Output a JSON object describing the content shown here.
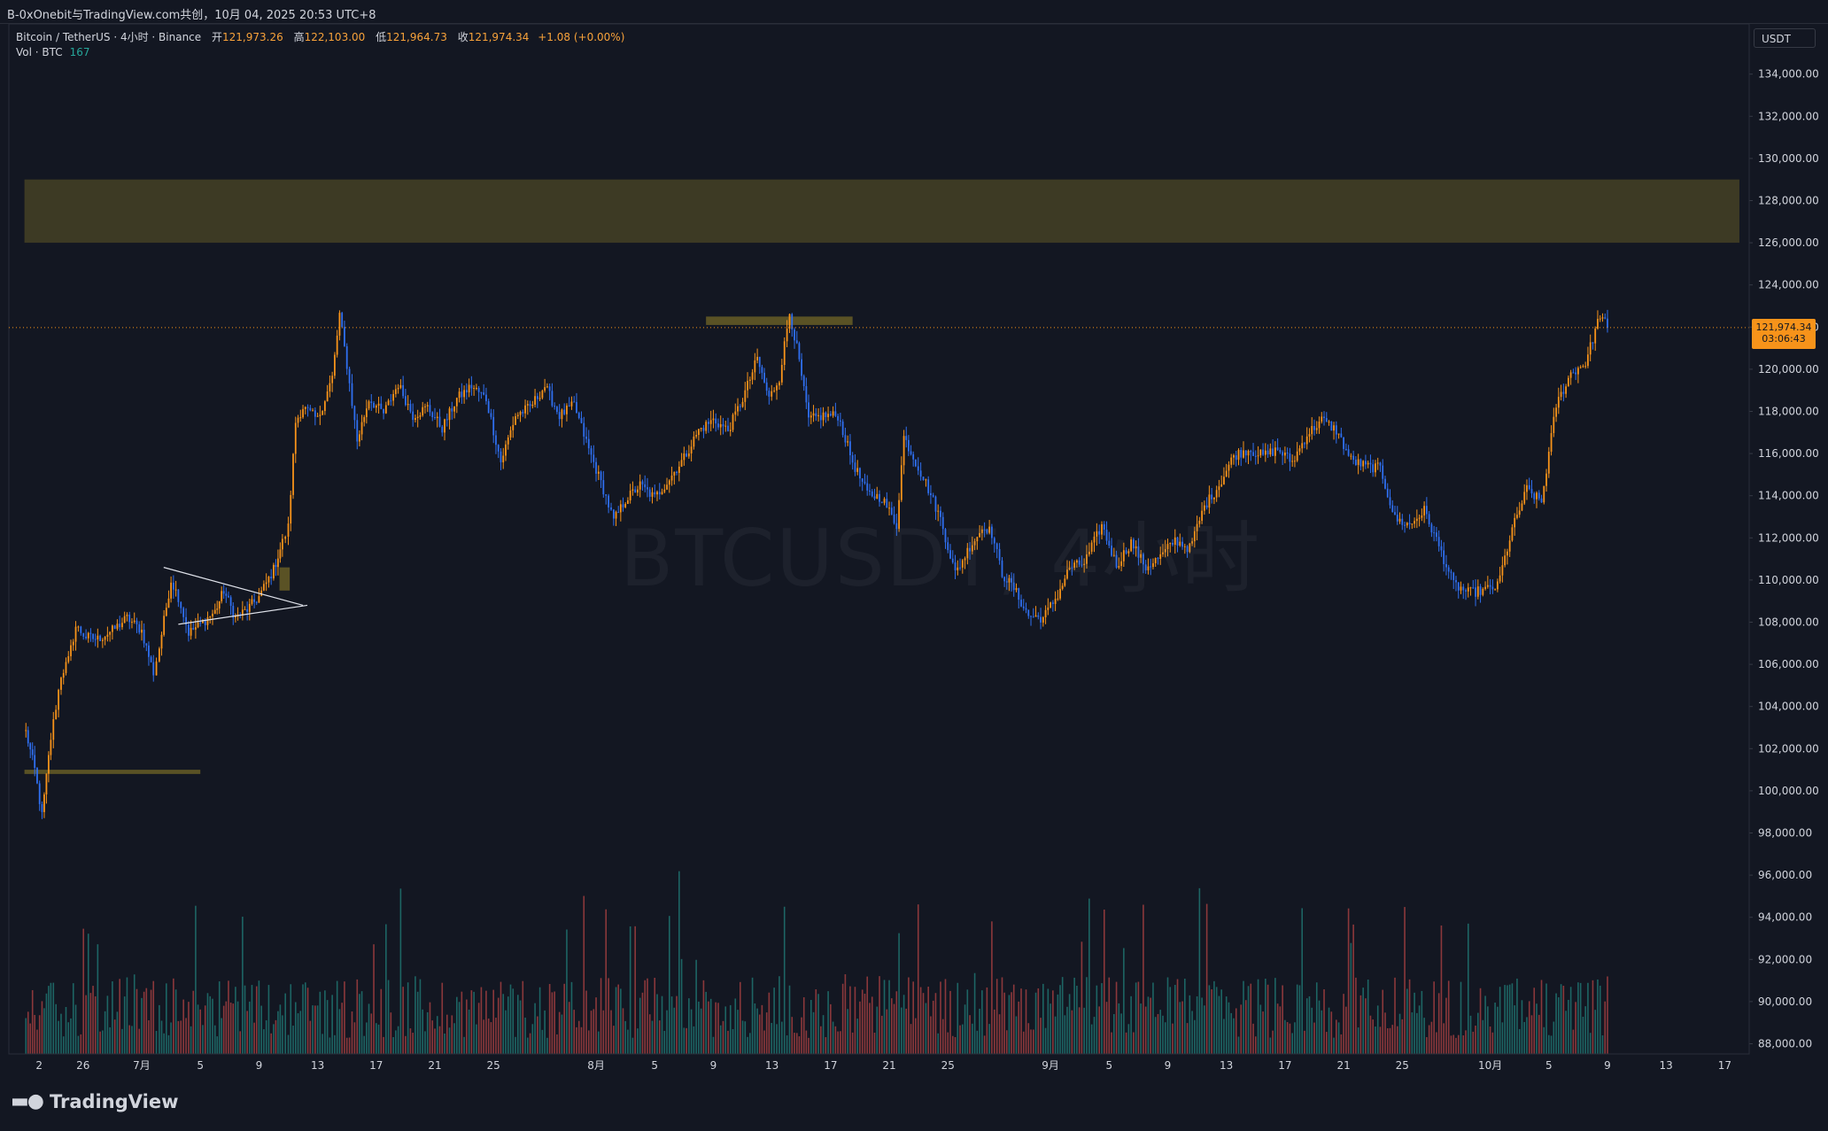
{
  "header": {
    "share_text": "B-0xOnebit与TradingView.com共创，10月 04, 2025 20:53 UTC+8"
  },
  "legend": {
    "symbol": "Bitcoin / TetherUS · 4小时 · Binance",
    "open_label": "开",
    "open": "121,973.26",
    "high_label": "高",
    "high": "122,103.00",
    "low_label": "低",
    "low": "121,964.73",
    "close_label": "收",
    "close": "121,974.34",
    "change": "+1.08 (+0.00%)",
    "volume_label": "Vol · BTC",
    "volume_value": "167"
  },
  "watermark": "BTCUSDT, 4小时",
  "price_axis": {
    "currency": "USDT",
    "current_price": "121,974.34",
    "countdown": "03:06:43"
  },
  "footer": {
    "brand": "TradingView"
  },
  "colors": {
    "background": "#131722",
    "up": "#f7931a",
    "down": "#2f6ff0",
    "vol_up": "#26a69a",
    "vol_down": "#ef5350",
    "zone": "#8b7a28"
  },
  "chart_data": {
    "type": "candlestick",
    "title": "",
    "ylim": [
      87500,
      136000
    ],
    "y_ticks": [
      "88,000.00",
      "90,000.00",
      "92,000.00",
      "94,000.00",
      "96,000.00",
      "98,000.00",
      "100,000.00",
      "102,000.00",
      "104,000.00",
      "106,000.00",
      "108,000.00",
      "110,000.00",
      "112,000.00",
      "114,000.00",
      "116,000.00",
      "118,000.00",
      "120,000.00",
      "122,000.00",
      "124,000.00",
      "126,000.00",
      "128,000.00",
      "130,000.00",
      "132,000.00",
      "134,000.00"
    ],
    "x_ticks": [
      "2",
      "26",
      "7月",
      "5",
      "9",
      "13",
      "17",
      "21",
      "25",
      "8月",
      "5",
      "9",
      "13",
      "17",
      "21",
      "25",
      "9月",
      "5",
      "9",
      "13",
      "17",
      "21",
      "25",
      "10月",
      "5",
      "9",
      "13",
      "17"
    ],
    "x_tick_days": [
      -7,
      -4,
      0,
      4,
      8,
      12,
      16,
      20,
      24,
      31,
      35,
      39,
      43,
      47,
      51,
      55,
      62,
      66,
      70,
      74,
      78,
      82,
      86,
      92,
      96,
      100,
      104,
      108
    ],
    "close_path": [
      [
        -7.9,
        102800
      ],
      [
        -7.3,
        101000
      ],
      [
        -6.8,
        98800
      ],
      [
        -6.2,
        102500
      ],
      [
        -5.5,
        105500
      ],
      [
        -5,
        106200
      ],
      [
        -4.5,
        107800
      ],
      [
        -3.8,
        107300
      ],
      [
        -3,
        107200
      ],
      [
        -2,
        107600
      ],
      [
        -1,
        108200
      ],
      [
        0,
        107600
      ],
      [
        0.8,
        105600
      ],
      [
        1.2,
        106800
      ],
      [
        2,
        110000
      ],
      [
        2.5,
        109200
      ],
      [
        3.2,
        107500
      ],
      [
        4,
        107900
      ],
      [
        5,
        108500
      ],
      [
        5.6,
        109500
      ],
      [
        6.4,
        108200
      ],
      [
        7.2,
        108600
      ],
      [
        8,
        109200
      ],
      [
        9,
        110500
      ],
      [
        9.6,
        111800
      ],
      [
        10,
        112500
      ],
      [
        10.5,
        117500
      ],
      [
        11,
        118200
      ],
      [
        12,
        117600
      ],
      [
        13,
        119600
      ],
      [
        13.5,
        122600
      ],
      [
        14,
        120200
      ],
      [
        14.7,
        116600
      ],
      [
        15.5,
        118600
      ],
      [
        16.5,
        117900
      ],
      [
        17.5,
        119300
      ],
      [
        18.5,
        117800
      ],
      [
        19.5,
        118200
      ],
      [
        20.5,
        117200
      ],
      [
        21.5,
        118600
      ],
      [
        22.5,
        119200
      ],
      [
        23.5,
        118600
      ],
      [
        24.5,
        115600
      ],
      [
        25.5,
        117800
      ],
      [
        26.5,
        118200
      ],
      [
        27.5,
        119200
      ],
      [
        28.5,
        117800
      ],
      [
        29.5,
        118300
      ],
      [
        30.5,
        116200
      ],
      [
        31.5,
        114300
      ],
      [
        32.2,
        112800
      ],
      [
        33,
        113800
      ],
      [
        34,
        114500
      ],
      [
        35,
        113900
      ],
      [
        36,
        114800
      ],
      [
        37,
        115800
      ],
      [
        38,
        117100
      ],
      [
        39,
        117600
      ],
      [
        40,
        117100
      ],
      [
        41,
        118600
      ],
      [
        42,
        120500
      ],
      [
        42.8,
        118600
      ],
      [
        43.5,
        119600
      ],
      [
        44.2,
        122700
      ],
      [
        44.7,
        121000
      ],
      [
        45.5,
        117600
      ],
      [
        46.5,
        117800
      ],
      [
        47.5,
        117800
      ],
      [
        48.5,
        115600
      ],
      [
        49.5,
        114100
      ],
      [
        50.5,
        113900
      ],
      [
        51.5,
        112600
      ],
      [
        52,
        116800
      ],
      [
        52.8,
        115600
      ],
      [
        53.5,
        114600
      ],
      [
        54.5,
        112900
      ],
      [
        55.5,
        110300
      ],
      [
        56.5,
        111600
      ],
      [
        57.5,
        112600
      ],
      [
        58,
        112200
      ],
      [
        58.7,
        110300
      ],
      [
        59.5,
        109600
      ],
      [
        60.5,
        108300
      ],
      [
        61.5,
        108200
      ],
      [
        62.5,
        109300
      ],
      [
        63.3,
        110600
      ],
      [
        64.3,
        110800
      ],
      [
        65.5,
        112600
      ],
      [
        66.5,
        110700
      ],
      [
        67.5,
        111800
      ],
      [
        68.5,
        110600
      ],
      [
        69.5,
        111100
      ],
      [
        70.5,
        111900
      ],
      [
        71.5,
        111500
      ],
      [
        72.5,
        113500
      ],
      [
        73.5,
        114500
      ],
      [
        74.5,
        115900
      ],
      [
        75.5,
        116200
      ],
      [
        76.5,
        115900
      ],
      [
        77.5,
        116200
      ],
      [
        78.5,
        115600
      ],
      [
        79.5,
        116900
      ],
      [
        80.5,
        117600
      ],
      [
        81.5,
        117100
      ],
      [
        82.5,
        115700
      ],
      [
        83.5,
        115400
      ],
      [
        84.5,
        115300
      ],
      [
        85.5,
        112900
      ],
      [
        86.5,
        112600
      ],
      [
        87.5,
        113300
      ],
      [
        88.5,
        111600
      ],
      [
        89.5,
        109800
      ],
      [
        90.5,
        109400
      ],
      [
        91.5,
        109500
      ],
      [
        92.5,
        109700
      ],
      [
        93.5,
        112400
      ],
      [
        94.5,
        114300
      ],
      [
        95.5,
        113700
      ],
      [
        96.5,
        118300
      ],
      [
        97.5,
        119800
      ],
      [
        98.5,
        120300
      ],
      [
        99.5,
        122600
      ],
      [
        100,
        121974
      ]
    ],
    "zones": [
      {
        "from_day": -8,
        "to_day": 109,
        "low": 126000,
        "high": 129000
      },
      {
        "from_day": 38.5,
        "to_day": 48.5,
        "low": 122100,
        "high": 122500
      },
      {
        "from_day": -8,
        "to_day": 4,
        "low": 100800,
        "high": 101000
      },
      {
        "from_day": 9.4,
        "to_day": 10.1,
        "low": 109500,
        "high": 110600
      }
    ],
    "trendlines": [
      {
        "from": [
          1.5,
          110600
        ],
        "to": [
          11,
          108800
        ]
      },
      {
        "from": [
          2.5,
          107900
        ],
        "to": [
          11.3,
          108800
        ]
      }
    ],
    "current_price": 121974.34
  }
}
